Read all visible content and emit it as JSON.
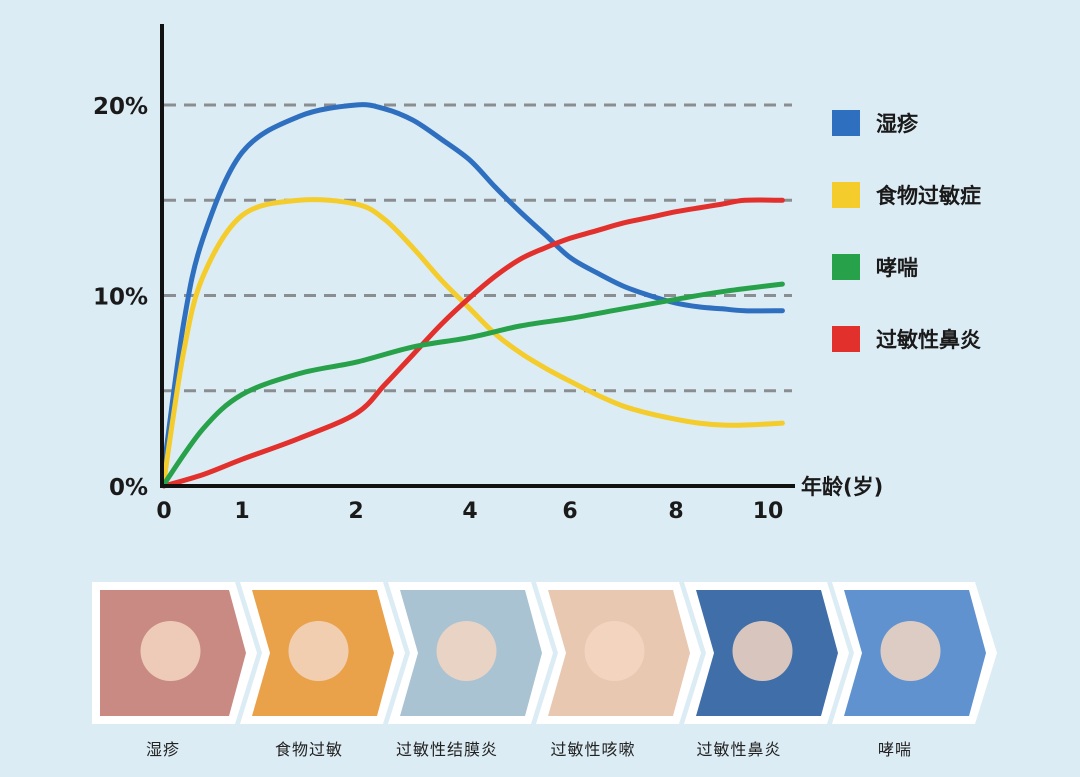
{
  "chart_data": {
    "type": "line",
    "xlabel": "年龄(岁)",
    "ylabel": "",
    "x_ticks": [
      0,
      1,
      2,
      4,
      6,
      8,
      10
    ],
    "y_ticks": [
      {
        "value": 0,
        "label": "0%"
      },
      {
        "value": 10,
        "label": "10%"
      },
      {
        "value": 20,
        "label": "20%"
      }
    ],
    "xlim": [
      0,
      10.5
    ],
    "ylim": [
      0,
      22
    ],
    "grid_lines": [
      5,
      10,
      15,
      20
    ],
    "legend_position": "right",
    "series": [
      {
        "name": "湿疹",
        "color": "#2f6fc0",
        "x": [
          0,
          0.25,
          0.5,
          1,
          1.5,
          2,
          2.5,
          3,
          3.5,
          4,
          4.5,
          5,
          5.5,
          6,
          6.5,
          7,
          7.5,
          8,
          8.5,
          9,
          9.5,
          10.3
        ],
        "y": [
          1,
          8.5,
          13,
          17.5,
          19.4,
          20,
          19.8,
          19.2,
          18.2,
          17.1,
          15.7,
          14.4,
          13.2,
          12,
          11.2,
          10.5,
          10,
          9.6,
          9.4,
          9.3,
          9.2,
          9.2
        ]
      },
      {
        "name": "食物过敏症",
        "color": "#f4cc2c",
        "x": [
          0,
          0.25,
          0.5,
          1,
          1.5,
          2,
          2.5,
          3,
          3.5,
          4,
          4.5,
          5,
          5.5,
          6,
          6.5,
          7,
          7.5,
          8,
          8.5,
          9,
          9.5,
          10.3
        ],
        "y": [
          0.3,
          7,
          11,
          14.2,
          15,
          14.8,
          14,
          12.5,
          10.8,
          9.3,
          8,
          7,
          6.2,
          5.5,
          4.8,
          4.2,
          3.8,
          3.5,
          3.3,
          3.2,
          3.2,
          3.3
        ]
      },
      {
        "name": "哮喘",
        "color": "#27a14a",
        "x": [
          0,
          0.5,
          1,
          1.5,
          2,
          3,
          4,
          5,
          6,
          7,
          8,
          9,
          10.3
        ],
        "y": [
          0.1,
          3,
          4.8,
          5.9,
          6.5,
          7.3,
          7.8,
          8.4,
          8.8,
          9.3,
          9.8,
          10.2,
          10.6
        ]
      },
      {
        "name": "过敏性鼻炎",
        "color": "#e2302c",
        "x": [
          0,
          0.5,
          1,
          1.5,
          2,
          2.5,
          3,
          3.5,
          4,
          4.5,
          5,
          5.5,
          6,
          6.5,
          7,
          7.5,
          8,
          8.5,
          9,
          9.5,
          10.3
        ],
        "y": [
          0,
          0.6,
          1.4,
          2.5,
          3.8,
          5.3,
          6.9,
          8.5,
          9.9,
          11,
          11.9,
          12.5,
          13,
          13.4,
          13.8,
          14.1,
          14.4,
          14.6,
          14.8,
          15,
          15
        ]
      }
    ]
  },
  "stages": [
    {
      "label": "湿疹",
      "tone": "#c98a83",
      "icon": "infant-photo"
    },
    {
      "label": "食物过敏",
      "tone": "#e9a24a",
      "icon": "child-orange-photo"
    },
    {
      "label": "过敏性结膜炎",
      "tone": "#a9c3d3",
      "icon": "eye-exam-photo"
    },
    {
      "label": "过敏性咳嗽",
      "tone": "#e8c8b0",
      "icon": "baby-photo"
    },
    {
      "label": "过敏性鼻炎",
      "tone": "#3f6ea8",
      "icon": "sneeze-photo"
    },
    {
      "label": "哮喘",
      "tone": "#5f92cf",
      "icon": "inhaler-photo"
    }
  ]
}
